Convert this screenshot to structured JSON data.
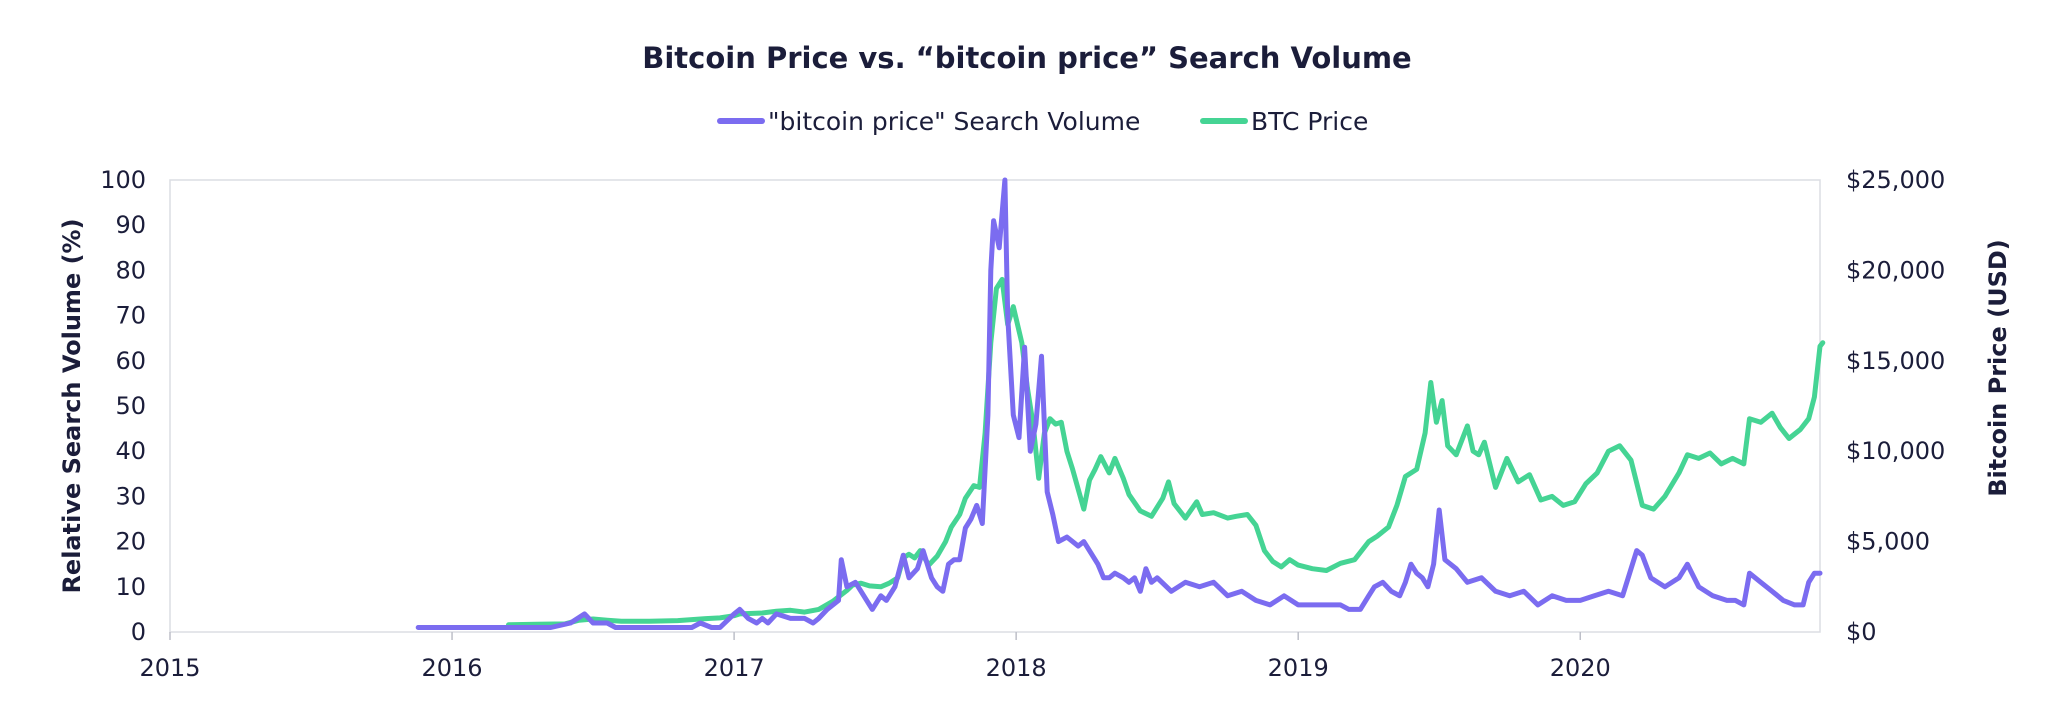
{
  "chart_data": {
    "type": "line",
    "title": "Bitcoin Price vs. “bitcoin price” Search Volume",
    "legend_position": "top-center",
    "grid": false,
    "x_axis": {
      "ticks": [
        "2015",
        "2016",
        "2017",
        "2018",
        "2019",
        "2020"
      ],
      "range": [
        2015.0,
        2020.85
      ]
    },
    "y_axis_left": {
      "label": "Relative Search Volume (%)",
      "range": [
        0,
        100
      ],
      "ticks": [
        "0",
        "10",
        "20",
        "30",
        "40",
        "50",
        "60",
        "70",
        "80",
        "90",
        "100"
      ]
    },
    "y_axis_right": {
      "label": "Bitcoin Price (USD)",
      "range": [
        0,
        25000
      ],
      "ticks": [
        "$0",
        "$5,000",
        "$10,000",
        "$15,000",
        "$20,000",
        "$25,000"
      ]
    },
    "series": [
      {
        "name": "\"bitcoin price\" Search Volume",
        "axis": "left",
        "color": "#7b6cf0",
        "points": [
          [
            2015.88,
            1
          ],
          [
            2016.0,
            1
          ],
          [
            2016.2,
            1
          ],
          [
            2016.35,
            1
          ],
          [
            2016.42,
            2
          ],
          [
            2016.47,
            4
          ],
          [
            2016.5,
            2
          ],
          [
            2016.55,
            2
          ],
          [
            2016.58,
            1
          ],
          [
            2016.62,
            1
          ],
          [
            2016.7,
            1
          ],
          [
            2016.8,
            1
          ],
          [
            2016.85,
            1
          ],
          [
            2016.88,
            2
          ],
          [
            2016.92,
            1
          ],
          [
            2016.95,
            1
          ],
          [
            2017.0,
            4
          ],
          [
            2017.02,
            5
          ],
          [
            2017.05,
            3
          ],
          [
            2017.08,
            2
          ],
          [
            2017.1,
            3
          ],
          [
            2017.12,
            2
          ],
          [
            2017.15,
            4
          ],
          [
            2017.2,
            3
          ],
          [
            2017.25,
            3
          ],
          [
            2017.28,
            2
          ],
          [
            2017.3,
            3
          ],
          [
            2017.33,
            5
          ],
          [
            2017.37,
            7
          ],
          [
            2017.38,
            16
          ],
          [
            2017.4,
            10
          ],
          [
            2017.43,
            11
          ],
          [
            2017.46,
            8
          ],
          [
            2017.49,
            5
          ],
          [
            2017.52,
            8
          ],
          [
            2017.54,
            7
          ],
          [
            2017.57,
            10
          ],
          [
            2017.6,
            17
          ],
          [
            2017.62,
            12
          ],
          [
            2017.65,
            14
          ],
          [
            2017.67,
            18
          ],
          [
            2017.7,
            12
          ],
          [
            2017.72,
            10
          ],
          [
            2017.74,
            9
          ],
          [
            2017.76,
            15
          ],
          [
            2017.78,
            16
          ],
          [
            2017.8,
            16
          ],
          [
            2017.82,
            23
          ],
          [
            2017.84,
            25
          ],
          [
            2017.86,
            28
          ],
          [
            2017.88,
            24
          ],
          [
            2017.9,
            48
          ],
          [
            2017.91,
            80
          ],
          [
            2017.92,
            91
          ],
          [
            2017.94,
            85
          ],
          [
            2017.96,
            100
          ],
          [
            2017.97,
            70
          ],
          [
            2017.99,
            48
          ],
          [
            2018.01,
            43
          ],
          [
            2018.03,
            63
          ],
          [
            2018.05,
            40
          ],
          [
            2018.07,
            46
          ],
          [
            2018.09,
            61
          ],
          [
            2018.11,
            31
          ],
          [
            2018.13,
            26
          ],
          [
            2018.15,
            20
          ],
          [
            2018.18,
            21
          ],
          [
            2018.2,
            20
          ],
          [
            2018.22,
            19
          ],
          [
            2018.24,
            20
          ],
          [
            2018.27,
            17
          ],
          [
            2018.29,
            15
          ],
          [
            2018.31,
            12
          ],
          [
            2018.33,
            12
          ],
          [
            2018.35,
            13
          ],
          [
            2018.38,
            12
          ],
          [
            2018.4,
            11
          ],
          [
            2018.42,
            12
          ],
          [
            2018.44,
            9
          ],
          [
            2018.46,
            14
          ],
          [
            2018.48,
            11
          ],
          [
            2018.5,
            12
          ],
          [
            2018.55,
            9
          ],
          [
            2018.6,
            11
          ],
          [
            2018.65,
            10
          ],
          [
            2018.7,
            11
          ],
          [
            2018.75,
            8
          ],
          [
            2018.8,
            9
          ],
          [
            2018.85,
            7
          ],
          [
            2018.9,
            6
          ],
          [
            2018.95,
            8
          ],
          [
            2019.0,
            6
          ],
          [
            2019.05,
            6
          ],
          [
            2019.1,
            6
          ],
          [
            2019.15,
            6
          ],
          [
            2019.18,
            5
          ],
          [
            2019.22,
            5
          ],
          [
            2019.25,
            8
          ],
          [
            2019.27,
            10
          ],
          [
            2019.3,
            11
          ],
          [
            2019.33,
            9
          ],
          [
            2019.36,
            8
          ],
          [
            2019.38,
            11
          ],
          [
            2019.4,
            15
          ],
          [
            2019.42,
            13
          ],
          [
            2019.44,
            12
          ],
          [
            2019.46,
            10
          ],
          [
            2019.48,
            15
          ],
          [
            2019.5,
            27
          ],
          [
            2019.52,
            16
          ],
          [
            2019.56,
            14
          ],
          [
            2019.6,
            11
          ],
          [
            2019.65,
            12
          ],
          [
            2019.7,
            9
          ],
          [
            2019.75,
            8
          ],
          [
            2019.8,
            9
          ],
          [
            2019.85,
            6
          ],
          [
            2019.9,
            8
          ],
          [
            2019.95,
            7
          ],
          [
            2020.0,
            7
          ],
          [
            2020.05,
            8
          ],
          [
            2020.1,
            9
          ],
          [
            2020.15,
            8
          ],
          [
            2020.2,
            18
          ],
          [
            2020.22,
            17
          ],
          [
            2020.25,
            12
          ],
          [
            2020.3,
            10
          ],
          [
            2020.35,
            12
          ],
          [
            2020.38,
            15
          ],
          [
            2020.42,
            10
          ],
          [
            2020.47,
            8
          ],
          [
            2020.52,
            7
          ],
          [
            2020.55,
            7
          ],
          [
            2020.58,
            6
          ],
          [
            2020.6,
            13
          ],
          [
            2020.64,
            11
          ],
          [
            2020.68,
            9
          ],
          [
            2020.72,
            7
          ],
          [
            2020.76,
            6
          ],
          [
            2020.79,
            6
          ],
          [
            2020.81,
            11
          ],
          [
            2020.83,
            13
          ],
          [
            2020.85,
            13
          ]
        ]
      },
      {
        "name": "BTC Price",
        "axis": "right",
        "color": "#45d494",
        "points": [
          [
            2016.2,
            400
          ],
          [
            2016.3,
            430
          ],
          [
            2016.4,
            450
          ],
          [
            2016.45,
            650
          ],
          [
            2016.5,
            720
          ],
          [
            2016.55,
            650
          ],
          [
            2016.6,
            590
          ],
          [
            2016.7,
            600
          ],
          [
            2016.8,
            630
          ],
          [
            2016.9,
            740
          ],
          [
            2016.95,
            780
          ],
          [
            2017.0,
            900
          ],
          [
            2017.02,
            1000
          ],
          [
            2017.1,
            1050
          ],
          [
            2017.15,
            1150
          ],
          [
            2017.2,
            1200
          ],
          [
            2017.25,
            1100
          ],
          [
            2017.3,
            1250
          ],
          [
            2017.35,
            1700
          ],
          [
            2017.4,
            2300
          ],
          [
            2017.42,
            2600
          ],
          [
            2017.45,
            2700
          ],
          [
            2017.48,
            2550
          ],
          [
            2017.52,
            2500
          ],
          [
            2017.55,
            2700
          ],
          [
            2017.58,
            3000
          ],
          [
            2017.6,
            4100
          ],
          [
            2017.62,
            4300
          ],
          [
            2017.64,
            4100
          ],
          [
            2017.66,
            4500
          ],
          [
            2017.69,
            3700
          ],
          [
            2017.72,
            4200
          ],
          [
            2017.75,
            5000
          ],
          [
            2017.77,
            5800
          ],
          [
            2017.8,
            6500
          ],
          [
            2017.82,
            7400
          ],
          [
            2017.85,
            8100
          ],
          [
            2017.87,
            8000
          ],
          [
            2017.89,
            11000
          ],
          [
            2017.91,
            16000
          ],
          [
            2017.93,
            19000
          ],
          [
            2017.95,
            19500
          ],
          [
            2017.97,
            17000
          ],
          [
            2017.99,
            18000
          ],
          [
            2018.02,
            16000
          ],
          [
            2018.04,
            13500
          ],
          [
            2018.06,
            11500
          ],
          [
            2018.08,
            8500
          ],
          [
            2018.1,
            11000
          ],
          [
            2018.12,
            11800
          ],
          [
            2018.14,
            11500
          ],
          [
            2018.16,
            11600
          ],
          [
            2018.18,
            10000
          ],
          [
            2018.2,
            9000
          ],
          [
            2018.24,
            6800
          ],
          [
            2018.26,
            8400
          ],
          [
            2018.28,
            9000
          ],
          [
            2018.3,
            9700
          ],
          [
            2018.33,
            8800
          ],
          [
            2018.35,
            9600
          ],
          [
            2018.38,
            8500
          ],
          [
            2018.4,
            7600
          ],
          [
            2018.44,
            6700
          ],
          [
            2018.48,
            6400
          ],
          [
            2018.52,
            7400
          ],
          [
            2018.54,
            8300
          ],
          [
            2018.56,
            7100
          ],
          [
            2018.6,
            6300
          ],
          [
            2018.64,
            7200
          ],
          [
            2018.66,
            6500
          ],
          [
            2018.7,
            6600
          ],
          [
            2018.75,
            6300
          ],
          [
            2018.78,
            6400
          ],
          [
            2018.82,
            6500
          ],
          [
            2018.85,
            5900
          ],
          [
            2018.88,
            4500
          ],
          [
            2018.91,
            3900
          ],
          [
            2018.94,
            3600
          ],
          [
            2018.97,
            4000
          ],
          [
            2019.0,
            3700
          ],
          [
            2019.05,
            3500
          ],
          [
            2019.1,
            3400
          ],
          [
            2019.15,
            3800
          ],
          [
            2019.2,
            4000
          ],
          [
            2019.25,
            5000
          ],
          [
            2019.28,
            5300
          ],
          [
            2019.32,
            5800
          ],
          [
            2019.35,
            7000
          ],
          [
            2019.38,
            8600
          ],
          [
            2019.42,
            9000
          ],
          [
            2019.45,
            11000
          ],
          [
            2019.47,
            13800
          ],
          [
            2019.49,
            11600
          ],
          [
            2019.51,
            12800
          ],
          [
            2019.53,
            10300
          ],
          [
            2019.56,
            9800
          ],
          [
            2019.6,
            11400
          ],
          [
            2019.62,
            10000
          ],
          [
            2019.64,
            9800
          ],
          [
            2019.66,
            10500
          ],
          [
            2019.7,
            8000
          ],
          [
            2019.74,
            9600
          ],
          [
            2019.78,
            8300
          ],
          [
            2019.82,
            8700
          ],
          [
            2019.86,
            7300
          ],
          [
            2019.9,
            7500
          ],
          [
            2019.94,
            7000
          ],
          [
            2019.98,
            7200
          ],
          [
            2020.02,
            8200
          ],
          [
            2020.06,
            8800
          ],
          [
            2020.1,
            10000
          ],
          [
            2020.14,
            10300
          ],
          [
            2020.18,
            9500
          ],
          [
            2020.22,
            7000
          ],
          [
            2020.26,
            6800
          ],
          [
            2020.3,
            7500
          ],
          [
            2020.35,
            8800
          ],
          [
            2020.38,
            9800
          ],
          [
            2020.42,
            9600
          ],
          [
            2020.46,
            9900
          ],
          [
            2020.5,
            9300
          ],
          [
            2020.54,
            9600
          ],
          [
            2020.58,
            9300
          ],
          [
            2020.6,
            11800
          ],
          [
            2020.64,
            11600
          ],
          [
            2020.68,
            12100
          ],
          [
            2020.71,
            11300
          ],
          [
            2020.74,
            10700
          ],
          [
            2020.78,
            11200
          ],
          [
            2020.81,
            11800
          ],
          [
            2020.83,
            13000
          ],
          [
            2020.85,
            15800
          ],
          [
            2020.86,
            16000
          ]
        ]
      }
    ]
  }
}
